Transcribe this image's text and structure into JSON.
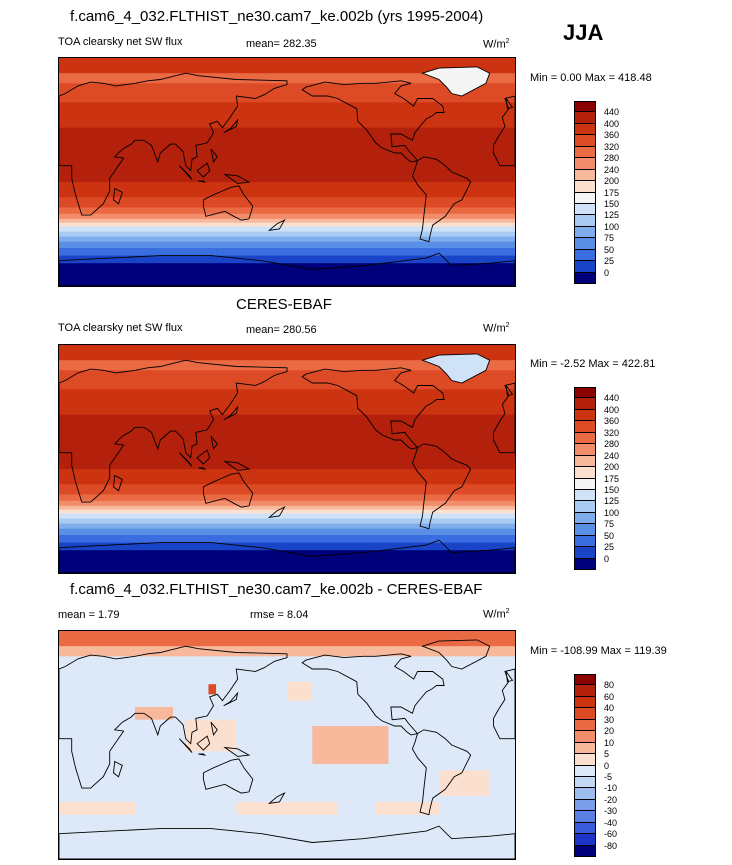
{
  "season": "JJA",
  "panels": [
    {
      "title": "f.cam6_4_032.FLTHIST_ne30.cam7_ke.002b (yrs 1995-2004)",
      "left_label": "TOA clearsky net SW flux",
      "stat1": "mean= 282.35",
      "stat2": "",
      "units": "W/m",
      "units_sup": "2",
      "minmax": "Min =   0.00 Max = 418.48"
    },
    {
      "title": "CERES-EBAF",
      "left_label": "TOA clearsky net SW flux",
      "stat1": "mean= 280.56",
      "stat2": "",
      "units": "W/m",
      "units_sup": "2",
      "minmax": "Min =  -2.52 Max = 422.81"
    },
    {
      "title": "f.cam6_4_032.FLTHIST_ne30.cam7_ke.002b - CERES-EBAF",
      "left_label": "mean =   1.79",
      "stat1": "rmse =   8.04",
      "stat2": "",
      "units": "W/m",
      "units_sup": "2",
      "minmax": "Min = -108.99 Max = 119.39"
    }
  ],
  "colorbars": [
    {
      "labels": [
        "440",
        "400",
        "360",
        "320",
        "280",
        "240",
        "200",
        "175",
        "150",
        "125",
        "100",
        "75",
        "50",
        "25",
        "0"
      ],
      "colors": [
        "#8b0000",
        "#b3200b",
        "#cc3311",
        "#dd4a26",
        "#ea6a44",
        "#f28d6c",
        "#f7b89b",
        "#fbe0d0",
        "#f5f5f5",
        "#cfe2f7",
        "#a9cbf2",
        "#7fadeb",
        "#5a8fe6",
        "#3a6ee0",
        "#1a44c8",
        "#00007a"
      ]
    },
    {
      "labels": [
        "440",
        "400",
        "360",
        "320",
        "280",
        "240",
        "200",
        "175",
        "150",
        "125",
        "100",
        "75",
        "50",
        "25",
        "0"
      ],
      "colors": [
        "#8b0000",
        "#b3200b",
        "#cc3311",
        "#dd4a26",
        "#ea6a44",
        "#f28d6c",
        "#f7b89b",
        "#fbe0d0",
        "#f5f5f5",
        "#cfe2f7",
        "#a9cbf2",
        "#7fadeb",
        "#5a8fe6",
        "#3a6ee0",
        "#1a44c8",
        "#00007a"
      ]
    },
    {
      "labels": [
        "80",
        "60",
        "40",
        "30",
        "20",
        "10",
        "5",
        "0",
        "-5",
        "-10",
        "-20",
        "-30",
        "-40",
        "-60",
        "-80"
      ],
      "colors": [
        "#8b0000",
        "#b3200b",
        "#cc3311",
        "#dd4a26",
        "#ea6a44",
        "#f28d6c",
        "#f7b89b",
        "#fbe0d0",
        "#dde9f8",
        "#c3d8f4",
        "#9dbdee",
        "#7a9fe8",
        "#5a80e2",
        "#3a5edb",
        "#1a35c8",
        "#00007a"
      ]
    }
  ],
  "chart_data": [
    {
      "type": "heatmap",
      "title": "f.cam6_4_032.FLTHIST_ne30.cam7_ke.002b (yrs 1995-2004)",
      "variable": "TOA clearsky net SW flux",
      "units": "W/m2",
      "mean": 282.35,
      "min": 0.0,
      "max": 418.48,
      "levels": [
        0,
        25,
        50,
        75,
        100,
        125,
        150,
        175,
        200,
        240,
        280,
        320,
        360,
        400,
        440
      ]
    },
    {
      "type": "heatmap",
      "title": "CERES-EBAF",
      "variable": "TOA clearsky net SW flux",
      "units": "W/m2",
      "mean": 280.56,
      "min": -2.52,
      "max": 422.81,
      "levels": [
        0,
        25,
        50,
        75,
        100,
        125,
        150,
        175,
        200,
        240,
        280,
        320,
        360,
        400,
        440
      ]
    },
    {
      "type": "heatmap",
      "title": "f.cam6_4_032.FLTHIST_ne30.cam7_ke.002b - CERES-EBAF",
      "units": "W/m2",
      "mean": 1.79,
      "rmse": 8.04,
      "min": -108.99,
      "max": 119.39,
      "levels": [
        -80,
        -60,
        -40,
        -30,
        -20,
        -10,
        -5,
        0,
        5,
        10,
        20,
        30,
        40,
        60,
        80
      ]
    }
  ]
}
